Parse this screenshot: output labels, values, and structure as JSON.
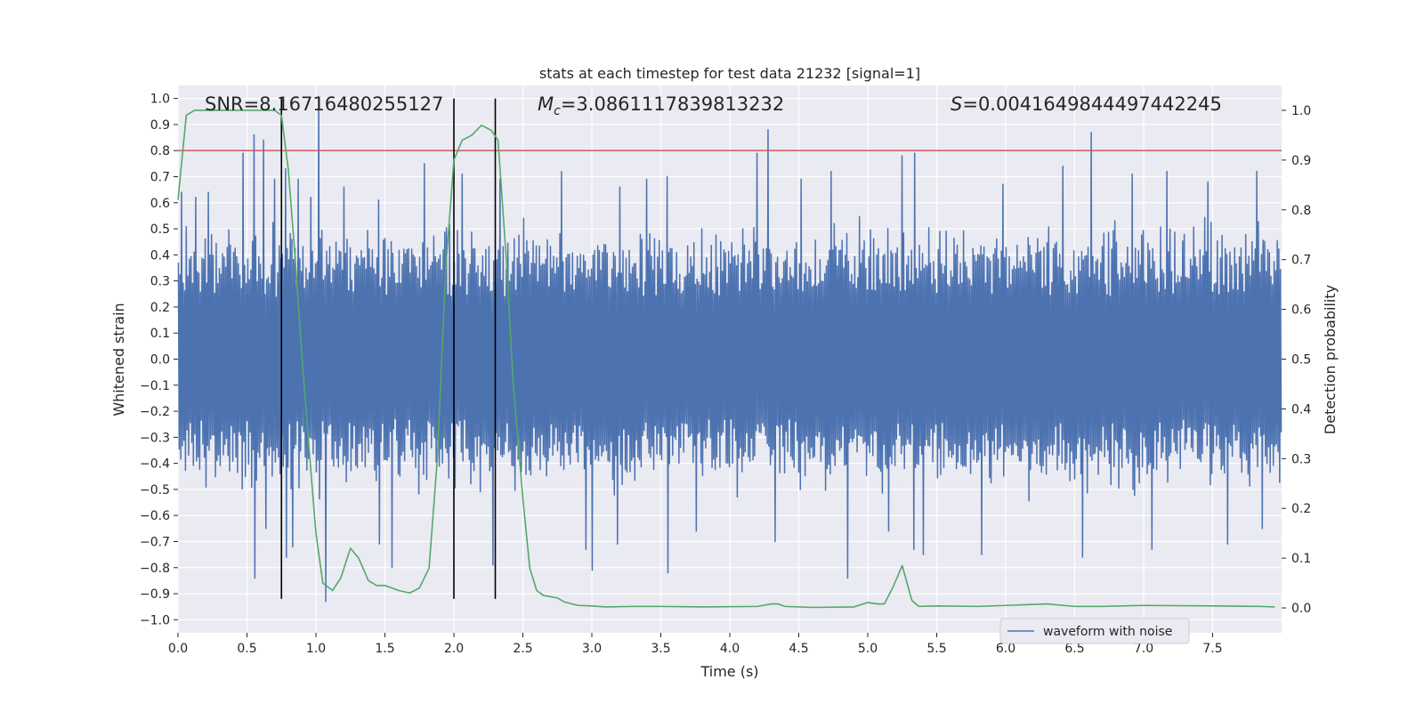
{
  "chart_data": {
    "type": "line",
    "title": "stats at each timestep for test data 21232 [signal=1]",
    "xlabel": "Time (s)",
    "ylabel": "Whitened strain",
    "ylabel_right": "Detection probability",
    "xlim": [
      0.0,
      8.0
    ],
    "ylim": [
      -1.05,
      1.05
    ],
    "ylim_right": [
      -0.05,
      1.05
    ],
    "x_ticks": [
      0.0,
      0.5,
      1.0,
      1.5,
      2.0,
      2.5,
      3.0,
      3.5,
      4.0,
      4.5,
      5.0,
      5.5,
      6.0,
      6.5,
      7.0,
      7.5
    ],
    "x_tick_labels": [
      "0.0",
      "0.5",
      "1.0",
      "1.5",
      "2.0",
      "2.5",
      "3.0",
      "3.5",
      "4.0",
      "4.5",
      "5.0",
      "5.5",
      "6.0",
      "6.5",
      "7.0",
      "7.5"
    ],
    "y_ticks": [
      1.0,
      0.9,
      0.8,
      0.7,
      0.6,
      0.5,
      0.4,
      0.3,
      0.2,
      0.1,
      0.0,
      -0.1,
      -0.2,
      -0.3,
      -0.4,
      -0.5,
      -0.6,
      -0.7,
      -0.8,
      -0.9,
      -1.0
    ],
    "y_tick_labels": [
      "1.0",
      "0.9",
      "0.8",
      "0.7",
      "0.6",
      "0.5",
      "0.4",
      "0.3",
      "0.2",
      "0.1",
      "0.0",
      "−0.1",
      "−0.2",
      "−0.3",
      "−0.4",
      "−0.5",
      "−0.6",
      "−0.7",
      "−0.8",
      "−0.9",
      "−1.0"
    ],
    "y_right_ticks": [
      1.0,
      0.9,
      0.8,
      0.7,
      0.6,
      0.5,
      0.4,
      0.3,
      0.2,
      0.1,
      0.0
    ],
    "y_right_tick_labels": [
      "1.0",
      "0.9",
      "0.8",
      "0.7",
      "0.6",
      "0.5",
      "0.4",
      "0.3",
      "0.2",
      "0.1",
      "0.0"
    ],
    "annotations": {
      "snr": "SNR=8.16716480255127",
      "mc_symbol": "M",
      "mc_subscript": "c",
      "mc_value": "=3.0861117839813232",
      "s_symbol": "S",
      "s_value": "=0.0041649844497442245"
    },
    "threshold_line": {
      "y": 0.8,
      "color": "#c44e52"
    },
    "vertical_lines": [
      0.75,
      2.0,
      2.3
    ],
    "vertical_line_range": [
      -0.92,
      1.0
    ],
    "waveform": {
      "name": "waveform with noise",
      "color": "#4c72b0",
      "seed": 21232,
      "n_samples": 1400,
      "base_upper": 0.43,
      "base_lower": -0.41,
      "peaks": [
        [
          0.02,
          0.64
        ],
        [
          0.13,
          0.62
        ],
        [
          0.22,
          0.64
        ],
        [
          0.47,
          0.79
        ],
        [
          0.55,
          0.86
        ],
        [
          0.62,
          0.84
        ],
        [
          0.7,
          0.69
        ],
        [
          0.78,
          0.73
        ],
        [
          0.87,
          0.69
        ],
        [
          0.96,
          0.62
        ],
        [
          1.02,
          1.0
        ],
        [
          1.2,
          0.66
        ],
        [
          1.45,
          0.61
        ],
        [
          1.78,
          0.75
        ],
        [
          2.06,
          0.71
        ],
        [
          2.33,
          0.69
        ],
        [
          2.78,
          0.72
        ],
        [
          3.2,
          0.66
        ],
        [
          3.4,
          0.69
        ],
        [
          3.55,
          0.7
        ],
        [
          4.2,
          0.79
        ],
        [
          4.28,
          0.88
        ],
        [
          4.52,
          0.69
        ],
        [
          4.73,
          0.72
        ],
        [
          5.25,
          0.78
        ],
        [
          5.34,
          0.79
        ],
        [
          5.98,
          0.67
        ],
        [
          6.41,
          0.74
        ],
        [
          6.62,
          0.87
        ],
        [
          6.92,
          0.71
        ],
        [
          7.17,
          0.72
        ],
        [
          7.46,
          0.68
        ],
        [
          7.82,
          0.72
        ]
      ],
      "troughs": [
        [
          0.55,
          -0.84
        ],
        [
          0.63,
          -0.65
        ],
        [
          0.78,
          -0.76
        ],
        [
          0.83,
          -0.72
        ],
        [
          1.07,
          -0.93
        ],
        [
          1.45,
          -0.71
        ],
        [
          1.55,
          -0.8
        ],
        [
          2.28,
          -0.79
        ],
        [
          2.95,
          -0.73
        ],
        [
          3.0,
          -0.81
        ],
        [
          3.18,
          -0.71
        ],
        [
          3.55,
          -0.82
        ],
        [
          3.75,
          -0.66
        ],
        [
          4.32,
          -0.7
        ],
        [
          4.85,
          -0.84
        ],
        [
          5.15,
          -0.66
        ],
        [
          5.33,
          -0.73
        ],
        [
          5.4,
          -0.75
        ],
        [
          5.82,
          -0.75
        ],
        [
          6.55,
          -0.76
        ],
        [
          7.05,
          -0.73
        ],
        [
          7.6,
          -0.71
        ],
        [
          7.85,
          -0.65
        ]
      ]
    },
    "probability": {
      "name": "detection probability",
      "color": "#55a868",
      "x": [
        0.0,
        0.06,
        0.12,
        0.25,
        0.4,
        0.55,
        0.65,
        0.7,
        0.75,
        0.8,
        0.85,
        0.9,
        0.95,
        1.0,
        1.05,
        1.12,
        1.18,
        1.25,
        1.31,
        1.38,
        1.44,
        1.5,
        1.6,
        1.68,
        1.75,
        1.82,
        1.88,
        1.94,
        2.0,
        2.06,
        2.13,
        2.2,
        2.27,
        2.32,
        2.38,
        2.43,
        2.5,
        2.55,
        2.6,
        2.65,
        2.75,
        2.8,
        2.9,
        3.0,
        3.1,
        3.3,
        3.5,
        3.8,
        4.2,
        4.3,
        4.35,
        4.4,
        4.6,
        4.9,
        5.0,
        5.07,
        5.12,
        5.18,
        5.25,
        5.32,
        5.37,
        5.5,
        5.8,
        6.3,
        6.5,
        6.7,
        7.0,
        7.5,
        7.85,
        7.95
      ],
      "y": [
        0.82,
        0.99,
        1.0,
        1.0,
        1.0,
        1.0,
        1.0,
        1.0,
        0.99,
        0.88,
        0.7,
        0.5,
        0.32,
        0.15,
        0.05,
        0.035,
        0.06,
        0.12,
        0.1,
        0.055,
        0.045,
        0.045,
        0.035,
        0.03,
        0.04,
        0.08,
        0.3,
        0.68,
        0.9,
        0.94,
        0.95,
        0.97,
        0.96,
        0.94,
        0.7,
        0.45,
        0.22,
        0.08,
        0.035,
        0.025,
        0.02,
        0.012,
        0.005,
        0.004,
        0.002,
        0.003,
        0.003,
        0.002,
        0.003,
        0.008,
        0.008,
        0.003,
        0.001,
        0.002,
        0.011,
        0.008,
        0.008,
        0.04,
        0.085,
        0.015,
        0.003,
        0.004,
        0.003,
        0.008,
        0.003,
        0.003,
        0.005,
        0.004,
        0.003,
        0.002
      ]
    },
    "legend": {
      "placement": "bottom-right",
      "label": "waveform with noise"
    },
    "grid": true,
    "background": "#eaeaf2"
  }
}
